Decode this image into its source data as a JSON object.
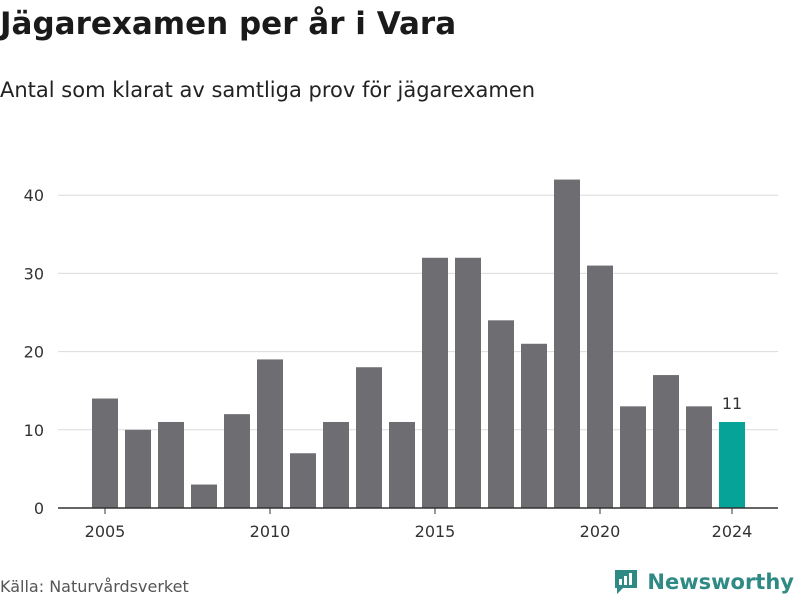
{
  "title": "Jägarexamen per år i Vara",
  "subtitle": "Antal som klarat av samtliga prov för jägarexamen",
  "source": "Källa: Naturvårdsverket",
  "brand": {
    "name": "Newsworthy",
    "icon": "newsworthy-logo-icon"
  },
  "colors": {
    "bar": "#6e6d72",
    "highlight": "#06a399",
    "grid": "#dcdcdc",
    "axis": "#333333",
    "brand": "#2f8a86"
  },
  "chart_data": {
    "type": "bar",
    "x": [
      2005,
      2006,
      2007,
      2008,
      2009,
      2010,
      2011,
      2012,
      2013,
      2014,
      2015,
      2016,
      2017,
      2018,
      2019,
      2020,
      2021,
      2022,
      2023,
      2024
    ],
    "values": [
      14,
      10,
      11,
      3,
      12,
      19,
      7,
      11,
      18,
      11,
      32,
      32,
      24,
      21,
      42,
      31,
      13,
      17,
      13,
      11
    ],
    "xticks": [
      "2005",
      "2010",
      "2015",
      "2020",
      "2024"
    ],
    "yticks": [
      "0",
      "10",
      "20",
      "30",
      "40"
    ],
    "ylim": [
      0,
      43
    ],
    "highlight": {
      "x": 2024,
      "label": "11"
    },
    "grid": true
  }
}
